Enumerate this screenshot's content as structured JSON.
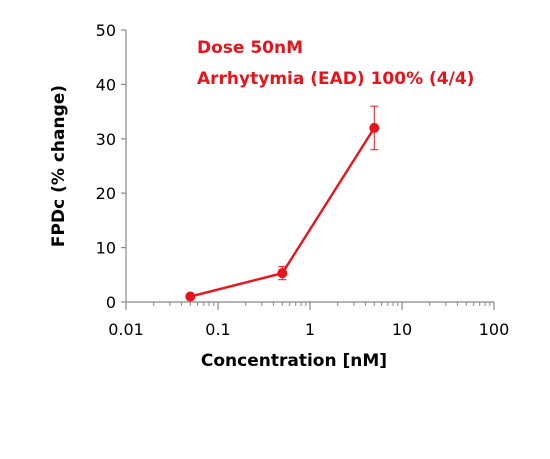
{
  "chart_data": {
    "type": "line",
    "xlabel": "Concentration [nM]",
    "ylabel": "FPDc (% change)",
    "x_scale": "log",
    "xlim": [
      0.01,
      100
    ],
    "ylim": [
      0,
      50
    ],
    "x_ticks": [
      "0.01",
      "0.1",
      "1",
      "10",
      "100"
    ],
    "y_ticks": [
      "0",
      "10",
      "20",
      "30",
      "40",
      "50"
    ],
    "grid": false,
    "annotations": [
      "Dose 50nM",
      "Arrhytymia (EAD) 100% (4/4)"
    ],
    "series": [
      {
        "color": "#e8141c",
        "x": [
          0.05,
          0.5,
          5
        ],
        "y": [
          1.0,
          5.3,
          32.0
        ],
        "error": [
          0.3,
          1.2,
          4.0
        ]
      }
    ]
  }
}
